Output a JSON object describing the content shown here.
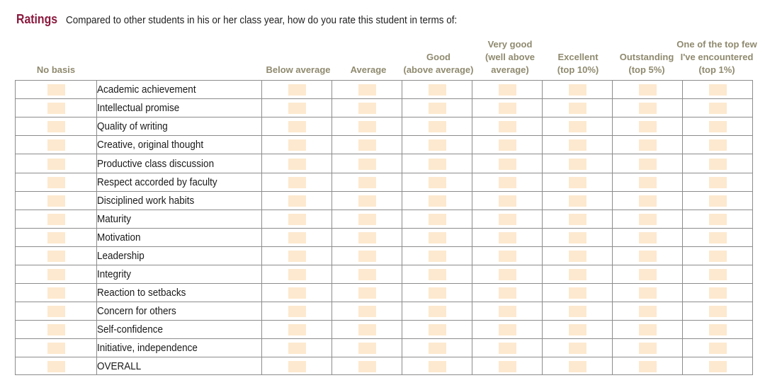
{
  "heading": {
    "title": "Ratings",
    "question": "Compared to other students in his or her class year, how do you rate this student in terms of:"
  },
  "columns": [
    {
      "key": "no_basis",
      "lines": [
        "No basis"
      ]
    },
    {
      "key": "below_average",
      "lines": [
        "Below average"
      ]
    },
    {
      "key": "average",
      "lines": [
        "Average"
      ]
    },
    {
      "key": "good",
      "lines": [
        "Good",
        "(above average)"
      ]
    },
    {
      "key": "very_good",
      "lines": [
        "Very good",
        "(well above",
        "average)"
      ]
    },
    {
      "key": "excellent",
      "lines": [
        "Excellent",
        "(top 10%)"
      ]
    },
    {
      "key": "outstanding",
      "lines": [
        "Outstanding",
        "(top 5%)"
      ]
    },
    {
      "key": "top_few",
      "lines": [
        "One of the top few",
        "I've encountered",
        "(top 1%)"
      ]
    }
  ],
  "rows": [
    "Academic achievement",
    "Intellectual promise",
    "Quality of writing",
    "Creative, original thought",
    "Productive class discussion",
    "Respect accorded by faculty",
    "Disciplined work habits",
    "Maturity",
    "Motivation",
    "Leadership",
    "Integrity",
    "Reaction to setbacks",
    "Concern for others",
    "Self-confidence",
    "Initiative, independence",
    "OVERALL"
  ],
  "colors": {
    "title": "#8b1a3e",
    "header_text": "#8f8a6f",
    "checkbox_fill": "#fde9cf",
    "grid_line": "#8c8c8c"
  }
}
